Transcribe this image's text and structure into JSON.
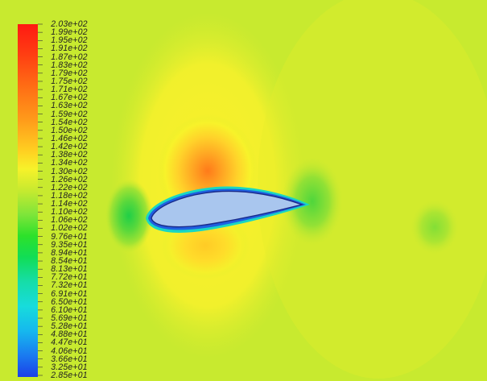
{
  "legend": {
    "labels": [
      "2.03e+02",
      "1.99e+02",
      "1.95e+02",
      "1.91e+02",
      "1.87e+02",
      "1.83e+02",
      "1.79e+02",
      "1.75e+02",
      "1.71e+02",
      "1.67e+02",
      "1.63e+02",
      "1.59e+02",
      "1.54e+02",
      "1.50e+02",
      "1.46e+02",
      "1.42e+02",
      "1.38e+02",
      "1.34e+02",
      "1.30e+02",
      "1.26e+02",
      "1.22e+02",
      "1.18e+02",
      "1.14e+02",
      "1.10e+02",
      "1.06e+02",
      "1.02e+02",
      "9.76e+01",
      "9.35e+01",
      "8.94e+01",
      "8.54e+01",
      "8.13e+01",
      "7.72e+01",
      "7.32e+01",
      "6.91e+01",
      "6.50e+01",
      "6.10e+01",
      "5.69e+01",
      "5.28e+01",
      "4.88e+01",
      "4.47e+01",
      "4.06e+01",
      "3.66e+01",
      "3.25e+01",
      "2.85e+01"
    ]
  },
  "colors": {
    "background": "#c8ea2f",
    "far_field": "#c8ea2f",
    "airfoil_fill": "#a9c6ee",
    "airfoil_edge": "#1a2a8a",
    "boundary_layer": "#1f5fe0",
    "outer_layer": "#19d6c3"
  }
}
